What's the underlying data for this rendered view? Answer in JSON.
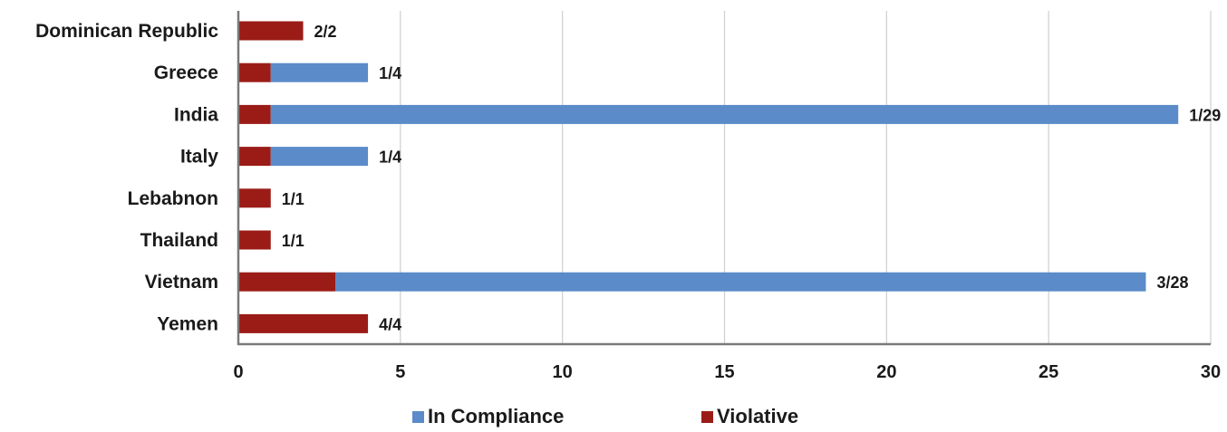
{
  "chart_data": {
    "type": "bar",
    "orientation": "horizontal",
    "stacked": true,
    "title": "",
    "xlabel": "",
    "ylabel": "",
    "categories": [
      "Dominican Republic",
      "Greece",
      "India",
      "Italy",
      "Lebabnon",
      "Thailand",
      "Vietnam",
      "Yemen"
    ],
    "series": [
      {
        "name": "Violative",
        "color": "#9b1c17",
        "values": [
          2,
          1,
          1,
          1,
          1,
          1,
          3,
          4
        ]
      },
      {
        "name": "In Compliance",
        "color": "#5b8bc9",
        "values": [
          0,
          3,
          28,
          3,
          0,
          0,
          25,
          0
        ]
      }
    ],
    "data_labels": [
      "2/2",
      "1/4",
      "1/29",
      "1/4",
      "1/1",
      "1/1",
      "3/28",
      "4/4"
    ],
    "xlim": [
      0,
      30
    ],
    "xticks": [
      0,
      5,
      10,
      15,
      20,
      25,
      30
    ],
    "grid": true,
    "legend": {
      "position": "bottom",
      "order": [
        "In Compliance",
        "Violative"
      ]
    }
  }
}
